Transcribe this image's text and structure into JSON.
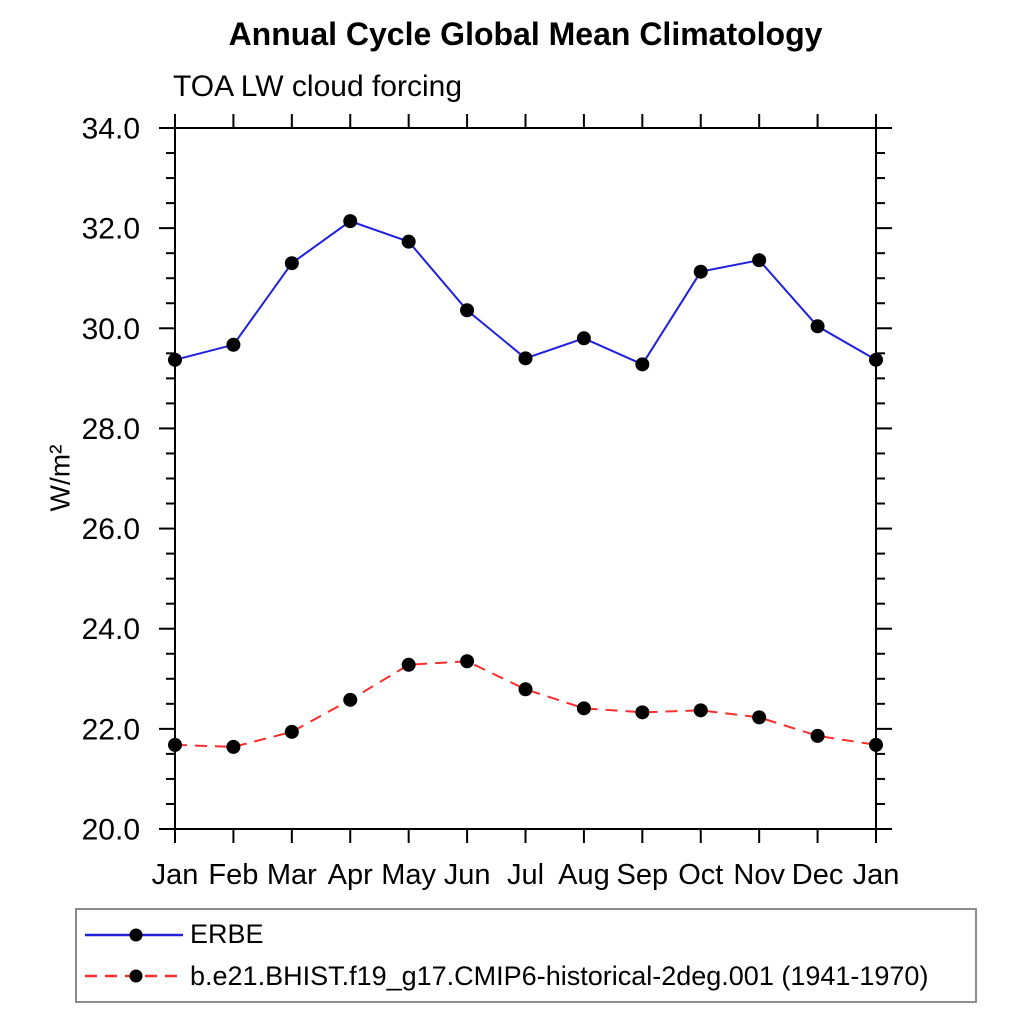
{
  "chart_data": {
    "type": "line",
    "title": "Annual Cycle Global Mean Climatology",
    "subtitle": "TOA LW cloud forcing",
    "xlabel": "",
    "ylabel": "W/m²",
    "categories": [
      "Jan",
      "Feb",
      "Mar",
      "Apr",
      "May",
      "Jun",
      "Jul",
      "Aug",
      "Sep",
      "Oct",
      "Nov",
      "Dec",
      "Jan"
    ],
    "ylim": [
      20.0,
      34.0
    ],
    "y_major_step": 2.0,
    "y_minor_step": 0.5,
    "y_tick_labels": [
      "20.0",
      "22.0",
      "24.0",
      "26.0",
      "28.0",
      "30.0",
      "32.0",
      "34.0"
    ],
    "grid": false,
    "legend_position": "bottom-left-box",
    "axis_color": "#000000",
    "series": [
      {
        "name": "ERBE",
        "color": "#2020dd",
        "line_style": "solid",
        "marker": "filled-circle",
        "marker_color": "#000000",
        "values": [
          29.37,
          29.67,
          31.3,
          32.14,
          31.73,
          30.36,
          29.4,
          29.8,
          29.28,
          31.13,
          31.36,
          30.04,
          29.37
        ]
      },
      {
        "name": "b.e21.BHIST.f19_g17.CMIP6-historical-2deg.001 (1941-1970)",
        "color": "#fa2d2d",
        "line_style": "dashed",
        "marker": "filled-circle",
        "marker_color": "#000000",
        "values": [
          21.68,
          21.64,
          21.94,
          22.58,
          23.28,
          23.35,
          22.79,
          22.41,
          22.33,
          22.37,
          22.23,
          21.86,
          21.68
        ]
      }
    ]
  }
}
